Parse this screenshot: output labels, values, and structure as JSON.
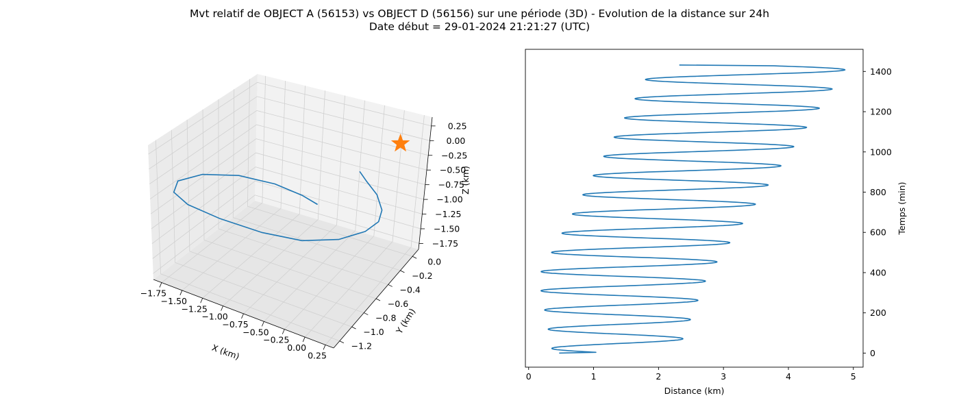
{
  "figure": {
    "title_line1": "Mvt relatif de OBJECT A (56153) vs OBJECT D (56156) sur une période (3D) - Evolution de la distance sur 24h",
    "title_line2": "Date début = 29-01-2024 21:21:27 (UTC)"
  },
  "colors": {
    "series": "#1f77b4",
    "marker": "#ff7f0e",
    "pane": "#f2f2f2",
    "grid": "#d0d0d0"
  },
  "chart_data": [
    {
      "type": "line3d",
      "title": "",
      "xlabel": "X (km)",
      "ylabel": "Y (km)",
      "zlabel": "Z (km)",
      "xlim": [
        -1.85,
        0.35
      ],
      "ylim": [
        -1.3,
        0.1
      ],
      "zlim": [
        -1.85,
        0.4
      ],
      "xticks": [
        -1.75,
        -1.5,
        -1.25,
        -1.0,
        -0.75,
        -0.5,
        -0.25,
        0.0,
        0.25
      ],
      "xtick_labels": [
        "−1.75",
        "−1.50",
        "−1.25",
        "−1.00",
        "−0.75",
        "−0.50",
        "−0.25",
        "0.00",
        "0.25"
      ],
      "yticks": [
        -1.2,
        -1.0,
        -0.8,
        -0.6,
        -0.4,
        -0.2,
        0.0
      ],
      "ytick_labels": [
        "−1.2",
        "−1.0",
        "−0.8",
        "−0.6",
        "−0.4",
        "−0.2",
        "0.0"
      ],
      "zticks": [
        -1.75,
        -1.5,
        -1.25,
        -1.0,
        -0.75,
        -0.5,
        -0.25,
        0.0,
        0.25
      ],
      "ztick_labels": [
        "−1.75",
        "−1.50",
        "−1.25",
        "−1.00",
        "−0.75",
        "−0.50",
        "−0.25",
        "0.00",
        "0.25"
      ],
      "grid": true,
      "series": [
        {
          "points": [
            [
              0.0,
              -0.5,
              0.0
            ],
            [
              0.05,
              -0.45,
              -0.2
            ],
            [
              0.08,
              -0.32,
              -0.55
            ],
            [
              0.06,
              -0.2,
              -0.95
            ],
            [
              -0.05,
              -0.1,
              -1.3
            ],
            [
              -0.25,
              -0.05,
              -1.6
            ],
            [
              -0.55,
              -0.1,
              -1.8
            ],
            [
              -0.9,
              -0.25,
              -1.8
            ],
            [
              -1.25,
              -0.45,
              -1.6
            ],
            [
              -1.55,
              -0.7,
              -1.25
            ],
            [
              -1.72,
              -0.95,
              -0.85
            ],
            [
              -1.7,
              -1.15,
              -0.45
            ],
            [
              -1.55,
              -1.25,
              -0.1
            ],
            [
              -1.25,
              -1.25,
              0.15
            ],
            [
              -0.9,
              -1.15,
              0.2
            ],
            [
              -0.6,
              -1.0,
              0.05
            ],
            [
              -0.4,
              -0.85,
              -0.2
            ],
            [
              -0.32,
              -0.72,
              -0.45
            ]
          ]
        }
      ],
      "marker": {
        "symbol": "star",
        "point": [
          0.15,
          -0.1,
          0.1
        ]
      }
    },
    {
      "type": "line",
      "title": "",
      "xlabel": "Distance (km)",
      "ylabel": "Temps (min)",
      "xlim": [
        -0.05,
        5.15
      ],
      "ylim": [
        -70,
        1510
      ],
      "xticks": [
        0,
        1,
        2,
        3,
        4,
        5
      ],
      "yticks": [
        0,
        200,
        400,
        600,
        800,
        1000,
        1200,
        1400
      ],
      "y_axis_side": "right",
      "grid": false,
      "series": [
        {
          "model": "distance = center(t) + amplitude(t)·sin(2π·(t − 47)/95.5)",
          "t_range": [
            0,
            1432
          ],
          "center": [
            [
              0,
              1.33
            ],
            [
              380,
              1.45
            ],
            [
              1432,
              3.42
            ]
          ],
          "amplitude": [
            [
              0,
              0.96
            ],
            [
              380,
              1.3
            ],
            [
              1432,
              1.5
            ]
          ],
          "start": {
            "t": 0,
            "distance": 0.47
          },
          "end": {
            "t": 1432,
            "distance": 2.32
          }
        }
      ]
    }
  ]
}
